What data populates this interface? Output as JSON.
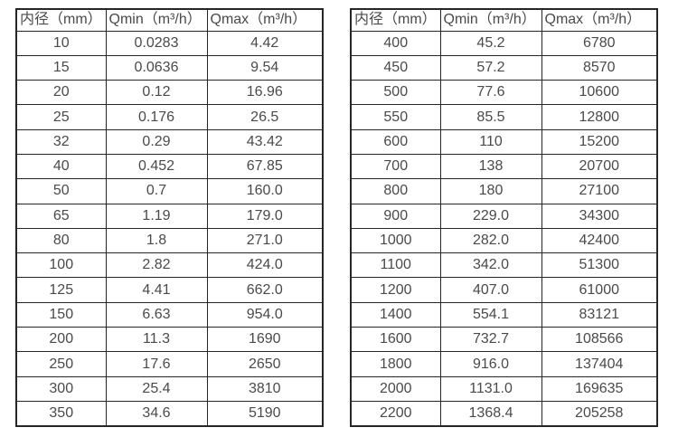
{
  "colors": {
    "border": "#262626",
    "text": "#4a4a4a",
    "background": "#ffffff"
  },
  "tables": [
    {
      "name": "flow-table-small-diameters",
      "headers": [
        "内径（mm）",
        "Qmin（m³/h）",
        "Qmax（m³/h）"
      ],
      "rows": [
        [
          "10",
          "0.0283",
          "4.42"
        ],
        [
          "15",
          "0.0636",
          "9.54"
        ],
        [
          "20",
          "0.12",
          "16.96"
        ],
        [
          "25",
          "0.176",
          "26.5"
        ],
        [
          "32",
          "0.29",
          "43.42"
        ],
        [
          "40",
          "0.452",
          "67.85"
        ],
        [
          "50",
          "0.7",
          "160.0"
        ],
        [
          "65",
          "1.19",
          "179.0"
        ],
        [
          "80",
          "1.8",
          "271.0"
        ],
        [
          "100",
          "2.82",
          "424.0"
        ],
        [
          "125",
          "4.41",
          "662.0"
        ],
        [
          "150",
          "6.63",
          "954.0"
        ],
        [
          "200",
          "11.3",
          "1690"
        ],
        [
          "250",
          "17.6",
          "2650"
        ],
        [
          "300",
          "25.4",
          "3810"
        ],
        [
          "350",
          "34.6",
          "5190"
        ]
      ]
    },
    {
      "name": "flow-table-large-diameters",
      "headers": [
        "内径（mm）",
        "Qmin（m³/h）",
        "Qmax（m³/h）"
      ],
      "rows": [
        [
          "400",
          "45.2",
          "6780"
        ],
        [
          "450",
          "57.2",
          "8570"
        ],
        [
          "500",
          "77.6",
          "10600"
        ],
        [
          "550",
          "85.5",
          "12800"
        ],
        [
          "600",
          "110",
          "15200"
        ],
        [
          "700",
          "138",
          "20700"
        ],
        [
          "800",
          "180",
          "27100"
        ],
        [
          "900",
          "229.0",
          "34300"
        ],
        [
          "1000",
          "282.0",
          "42400"
        ],
        [
          "1100",
          "342.0",
          "51300"
        ],
        [
          "1200",
          "407.0",
          "61000"
        ],
        [
          "1400",
          "554.1",
          "83121"
        ],
        [
          "1600",
          "732.7",
          "108566"
        ],
        [
          "1800",
          "916.0",
          "137404"
        ],
        [
          "2000",
          "1131.0",
          "169635"
        ],
        [
          "2200",
          "1368.4",
          "205258"
        ]
      ]
    }
  ]
}
